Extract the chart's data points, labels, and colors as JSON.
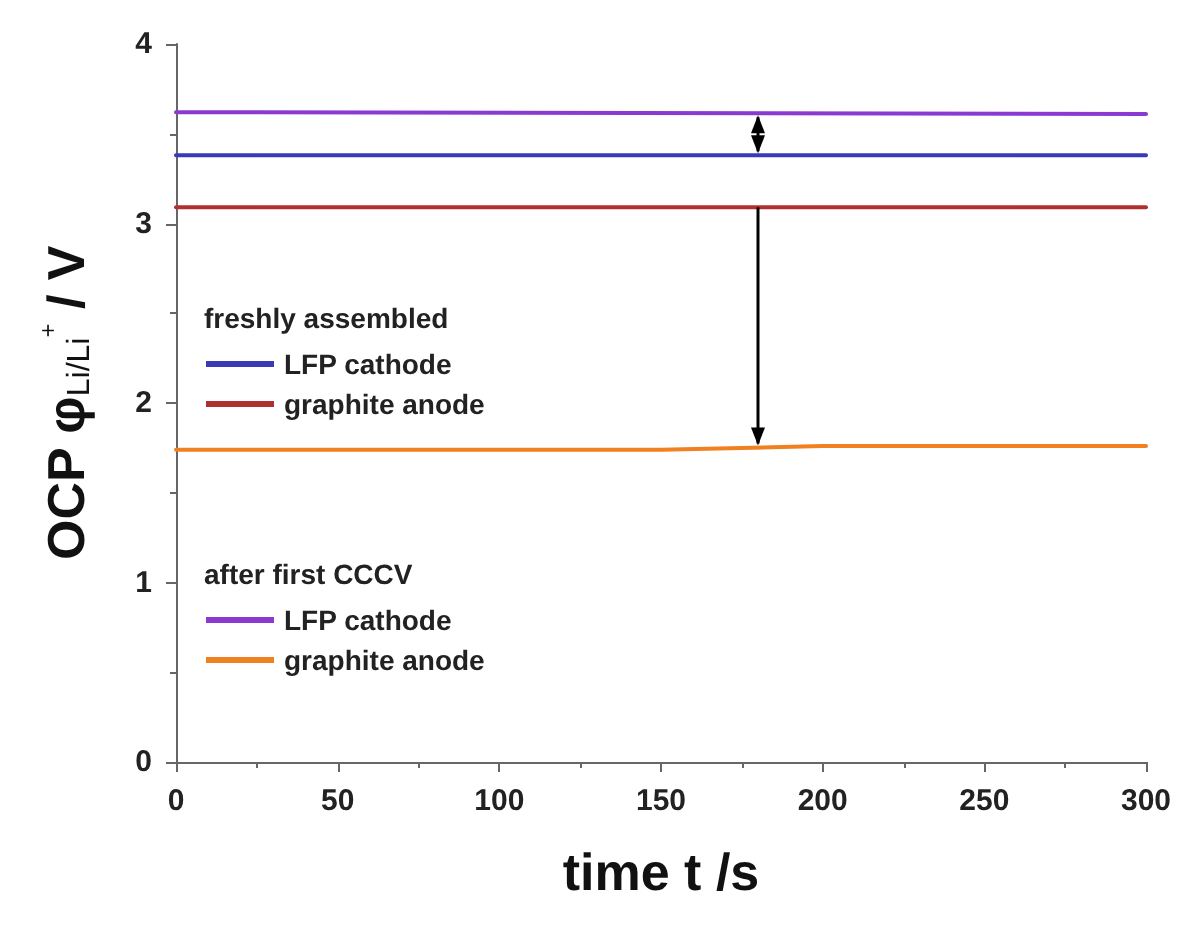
{
  "chart_data": {
    "type": "line",
    "xlabel": "time t /s",
    "ylabel": "OCP φ$_{Li/Li}$$^{+}$ / V",
    "xlim": [
      0,
      300
    ],
    "xticks": [
      0,
      50,
      100,
      150,
      200,
      250,
      300
    ],
    "ylim": [
      0,
      4
    ],
    "yticks": [
      0,
      1,
      2,
      3,
      4
    ],
    "annotations": [
      "freshly assembled",
      "after first CCCV"
    ],
    "legend": "left",
    "grid": false,
    "marker": "none",
    "line_style": "solid",
    "series": [
      {
        "name": "LFP cathode",
        "color": "#3a3ab8",
        "x": [
          0,
          300
        ],
        "values": [
          3.38,
          3.38
        ]
      },
      {
        "name": "graphite anode",
        "color": "#b03030",
        "x": [
          0,
          300
        ],
        "values": [
          3.09,
          3.09
        ]
      },
      {
        "name": "LFP cathode",
        "color": "#8a3ad0",
        "x": [
          0,
          300
        ],
        "values": [
          3.62,
          3.61
        ]
      },
      {
        "name": "graphite anode",
        "color": "#f08020",
        "x": [
          0,
          150,
          200,
          300
        ],
        "values": [
          1.74,
          1.74,
          1.76,
          1.76
        ]
      }
    ]
  }
}
